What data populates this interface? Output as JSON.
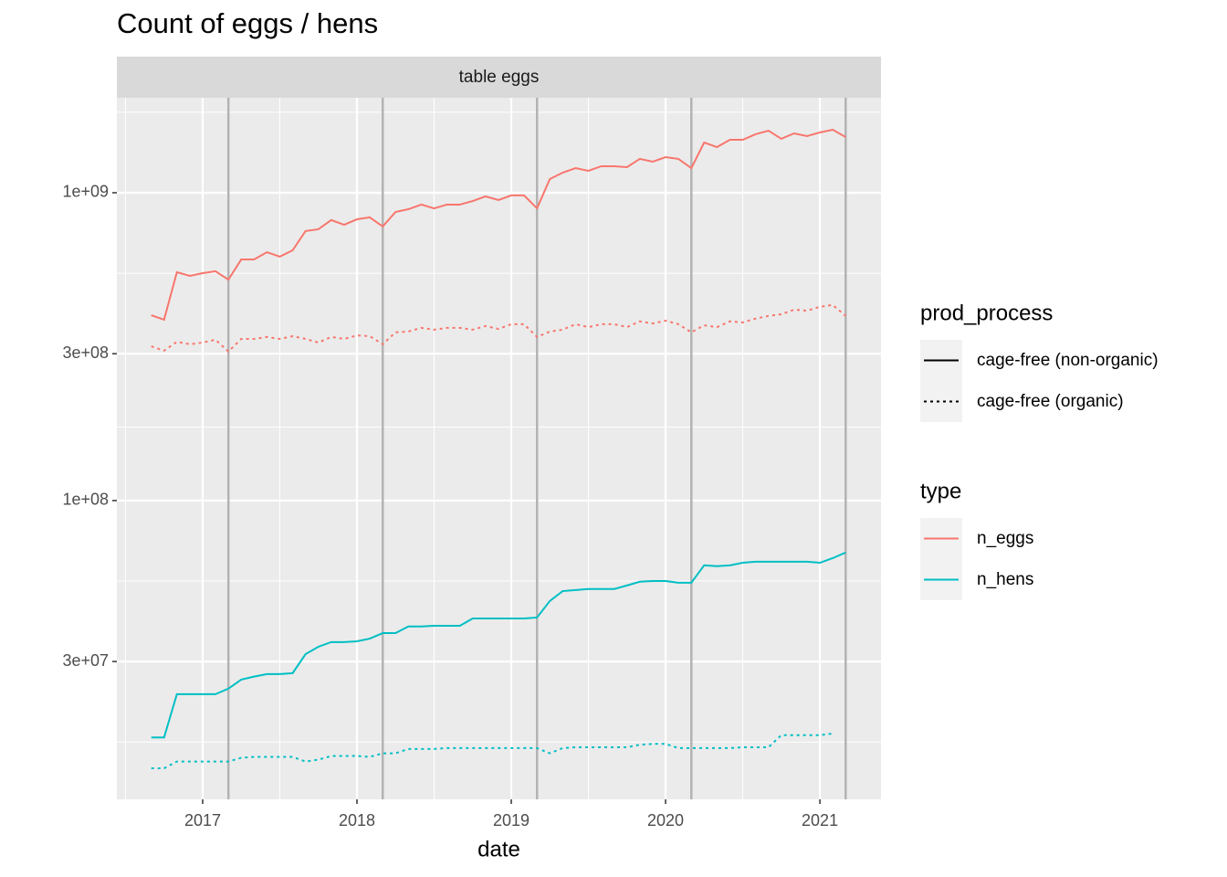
{
  "chart_data": {
    "type": "line",
    "title": "Count of eggs / hens",
    "facet": "table eggs",
    "x_label": "date",
    "log_y": true,
    "grid": true,
    "x": [
      2016.667,
      2016.75,
      2016.833,
      2016.917,
      2017.0,
      2017.083,
      2017.167,
      2017.25,
      2017.333,
      2017.417,
      2017.5,
      2017.583,
      2017.667,
      2017.75,
      2017.833,
      2017.917,
      2018.0,
      2018.083,
      2018.167,
      2018.25,
      2018.333,
      2018.417,
      2018.5,
      2018.583,
      2018.667,
      2018.75,
      2018.833,
      2018.917,
      2019.0,
      2019.083,
      2019.167,
      2019.25,
      2019.333,
      2019.417,
      2019.5,
      2019.583,
      2019.667,
      2019.75,
      2019.833,
      2019.917,
      2020.0,
      2020.083,
      2020.167,
      2020.25,
      2020.333,
      2020.417,
      2020.5,
      2020.583,
      2020.667,
      2020.75,
      2020.833,
      2020.917,
      2021.0,
      2021.083,
      2021.167
    ],
    "series": [
      {
        "color": "#F8766D",
        "linetype": "solid",
        "values": [
          400000000.0,
          387000000.0,
          552000000.0,
          537000000.0,
          548000000.0,
          556000000.0,
          522000000.0,
          607000000.0,
          607000000.0,
          641000000.0,
          620000000.0,
          650000000.0,
          751000000.0,
          761000000.0,
          815000000.0,
          787000000.0,
          820000000.0,
          832000000.0,
          777000000.0,
          866000000.0,
          884000000.0,
          915000000.0,
          890000000.0,
          915000000.0,
          915000000.0,
          940000000.0,
          973000000.0,
          947000000.0,
          980000000.0,
          980000000.0,
          890000000.0,
          1108000000.0,
          1162000000.0,
          1202000000.0,
          1178000000.0,
          1219000000.0,
          1219000000.0,
          1211000000.0,
          1288000000.0,
          1262000000.0,
          1305000000.0,
          1288000000.0,
          1202000000.0,
          1456000000.0,
          1407000000.0,
          1486000000.0,
          1486000000.0,
          1549000000.0,
          1591000000.0,
          1497000000.0,
          1559000000.0,
          1528000000.0,
          1570000000.0,
          1602000000.0,
          1517000000.0
        ]
      },
      {
        "color": "#F8766D",
        "linetype": "dotted",
        "values": [
          317000000.0,
          307000000.0,
          328000000.0,
          322000000.0,
          326000000.0,
          333000000.0,
          305000000.0,
          335000000.0,
          335000000.0,
          340000000.0,
          335000000.0,
          342000000.0,
          335000000.0,
          326000000.0,
          340000000.0,
          335000000.0,
          344000000.0,
          342000000.0,
          322000000.0,
          352000000.0,
          354000000.0,
          364000000.0,
          359000000.0,
          364000000.0,
          364000000.0,
          359000000.0,
          369000000.0,
          361000000.0,
          374000000.0,
          374000000.0,
          340000000.0,
          354000000.0,
          359000000.0,
          374000000.0,
          366000000.0,
          374000000.0,
          374000000.0,
          366000000.0,
          382000000.0,
          376000000.0,
          384000000.0,
          374000000.0,
          352000000.0,
          371000000.0,
          366000000.0,
          382000000.0,
          379000000.0,
          390000000.0,
          398000000.0,
          403000000.0,
          417000000.0,
          414000000.0,
          426000000.0,
          432000000.0,
          398000000.0
        ]
      },
      {
        "color": "#00BFC4",
        "linetype": "solid",
        "values": [
          17000000.0,
          17000000.0,
          23500000.0,
          23500000.0,
          23500000.0,
          23500000.0,
          24500000.0,
          26200000.0,
          26800000.0,
          27300000.0,
          27300000.0,
          27500000.0,
          31700000.0,
          33500000.0,
          34700000.0,
          34700000.0,
          34900000.0,
          35600000.0,
          37100000.0,
          37100000.0,
          39000000.0,
          39000000.0,
          39200000.0,
          39200000.0,
          39200000.0,
          41400000.0,
          41400000.0,
          41400000.0,
          41400000.0,
          41400000.0,
          41700000.0,
          47200000.0,
          50800000.0,
          51200000.0,
          51600000.0,
          51600000.0,
          51600000.0,
          53000000.0,
          54500000.0,
          54800000.0,
          54800000.0,
          54100000.0,
          54100000.0,
          61600000.0,
          61200000.0,
          61600000.0,
          62800000.0,
          63300000.0,
          63300000.0,
          63300000.0,
          63300000.0,
          63300000.0,
          62800000.0,
          65000000.0,
          67800000.0
        ]
      },
      {
        "color": "#00BFC4",
        "linetype": "dotted",
        "values": [
          13500000.0,
          13500000.0,
          14200000.0,
          14200000.0,
          14200000.0,
          14200000.0,
          14200000.0,
          14600000.0,
          14700000.0,
          14700000.0,
          14700000.0,
          14700000.0,
          14200000.0,
          14400000.0,
          14800000.0,
          14800000.0,
          14800000.0,
          14700000.0,
          15100000.0,
          15100000.0,
          15600000.0,
          15600000.0,
          15600000.0,
          15700000.0,
          15700000.0,
          15700000.0,
          15700000.0,
          15700000.0,
          15700000.0,
          15700000.0,
          15700000.0,
          15100000.0,
          15700000.0,
          15800000.0,
          15800000.0,
          15800000.0,
          15800000.0,
          15800000.0,
          16100000.0,
          16200000.0,
          16200000.0,
          15700000.0,
          15700000.0,
          15700000.0,
          15700000.0,
          15700000.0,
          15800000.0,
          15800000.0,
          15800000.0,
          17300000.0,
          17300000.0,
          17300000.0,
          17300000.0,
          17500000.0,
          null
        ]
      }
    ],
    "vlines": {
      "color": "#b3b3b3",
      "values": [
        2017.167,
        2018.167,
        2019.167,
        2020.167,
        2021.167
      ]
    },
    "xlim": [
      2016.444,
      2021.396
    ],
    "xticks": [
      2017,
      2018,
      2019,
      2020,
      2021
    ],
    "ylim": [
      10700000,
      2035000000
    ],
    "yticks": [
      {
        "value": 30000000,
        "label": "3e+07"
      },
      {
        "value": 100000000,
        "label": "1e+08"
      },
      {
        "value": 300000000,
        "label": "3e+08"
      },
      {
        "value": 1000000000,
        "label": "1e+09"
      }
    ],
    "legends": [
      {
        "title": "prod_process",
        "entries": [
          {
            "label": "cage-free (non-organic)",
            "linetype": "solid",
            "color": "#000000"
          },
          {
            "label": "cage-free (organic)",
            "linetype": "dotted",
            "color": "#000000"
          }
        ]
      },
      {
        "title": "type",
        "entries": [
          {
            "label": "n_eggs",
            "linetype": "solid",
            "color": "#F8766D"
          },
          {
            "label": "n_hens",
            "linetype": "solid",
            "color": "#00BFC4"
          }
        ]
      }
    ]
  }
}
